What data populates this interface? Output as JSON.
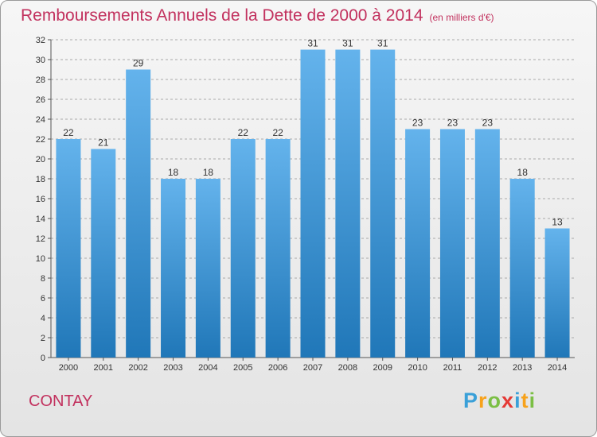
{
  "title": "Remboursements Annuels de la Dette de 2000 à 2014",
  "unit_label": "(en milliers d'€)",
  "location": "CONTAY",
  "logo": {
    "letters": [
      "P",
      "r",
      "o",
      "x",
      "i",
      "t",
      "i"
    ],
    "colors": [
      "#3aa0d8",
      "#f7a21b",
      "#7bbf44",
      "#e53935",
      "#3aa0d8",
      "#f7a21b",
      "#7bbf44"
    ]
  },
  "colors": {
    "title": "#c2315e",
    "bar_top": "#64b3ec",
    "bar_bottom": "#2077b8",
    "grid": "#a9a9a9"
  },
  "chart_data": {
    "type": "bar",
    "categories": [
      "2000",
      "2001",
      "2002",
      "2003",
      "2004",
      "2005",
      "2006",
      "2007",
      "2008",
      "2009",
      "2010",
      "2011",
      "2012",
      "2013",
      "2014"
    ],
    "values": [
      22,
      21,
      29,
      18,
      18,
      22,
      22,
      31,
      31,
      31,
      23,
      23,
      23,
      18,
      13
    ],
    "title": "Remboursements Annuels de la Dette de 2000 à 2014",
    "subtitle": "(en milliers d'€)",
    "xlabel": "",
    "ylabel": "",
    "ylim": [
      0,
      32
    ],
    "yticks": [
      0,
      2,
      4,
      6,
      8,
      10,
      12,
      14,
      16,
      18,
      20,
      22,
      24,
      26,
      28,
      30,
      32
    ],
    "grid": true,
    "legend": "none"
  }
}
